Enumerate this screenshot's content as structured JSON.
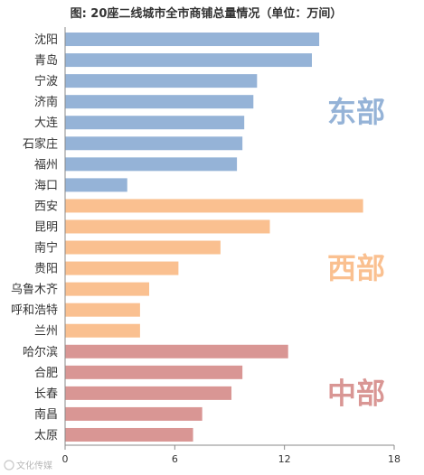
{
  "chart_data": {
    "type": "bar",
    "orientation": "horizontal",
    "title": "图: 20座二线城市全市商铺总量情况（单位：万间）",
    "categories": [
      "沈阳",
      "青岛",
      "宁波",
      "济南",
      "大连",
      "石家庄",
      "福州",
      "海口",
      "西安",
      "昆明",
      "南宁",
      "贵阳",
      "乌鲁木齐",
      "呼和浩特",
      "兰州",
      "哈尔滨",
      "合肥",
      "长春",
      "南昌",
      "太原"
    ],
    "values": [
      13.9,
      13.5,
      10.5,
      10.3,
      9.8,
      9.7,
      9.4,
      3.4,
      16.3,
      11.2,
      8.5,
      6.2,
      4.6,
      4.1,
      4.1,
      12.2,
      9.7,
      9.1,
      7.5,
      7.0
    ],
    "region_index": [
      0,
      0,
      0,
      0,
      0,
      0,
      0,
      0,
      1,
      1,
      1,
      1,
      1,
      1,
      1,
      2,
      2,
      2,
      2,
      2
    ],
    "regions": [
      {
        "name": "东部",
        "color": "#95b3d7"
      },
      {
        "name": "西部",
        "color": "#fac090"
      },
      {
        "name": "中部",
        "color": "#d99694"
      }
    ],
    "xlim": [
      0,
      18
    ],
    "xticks": [
      0,
      6,
      12,
      18
    ],
    "grid": false
  },
  "watermark": "文化传媒"
}
